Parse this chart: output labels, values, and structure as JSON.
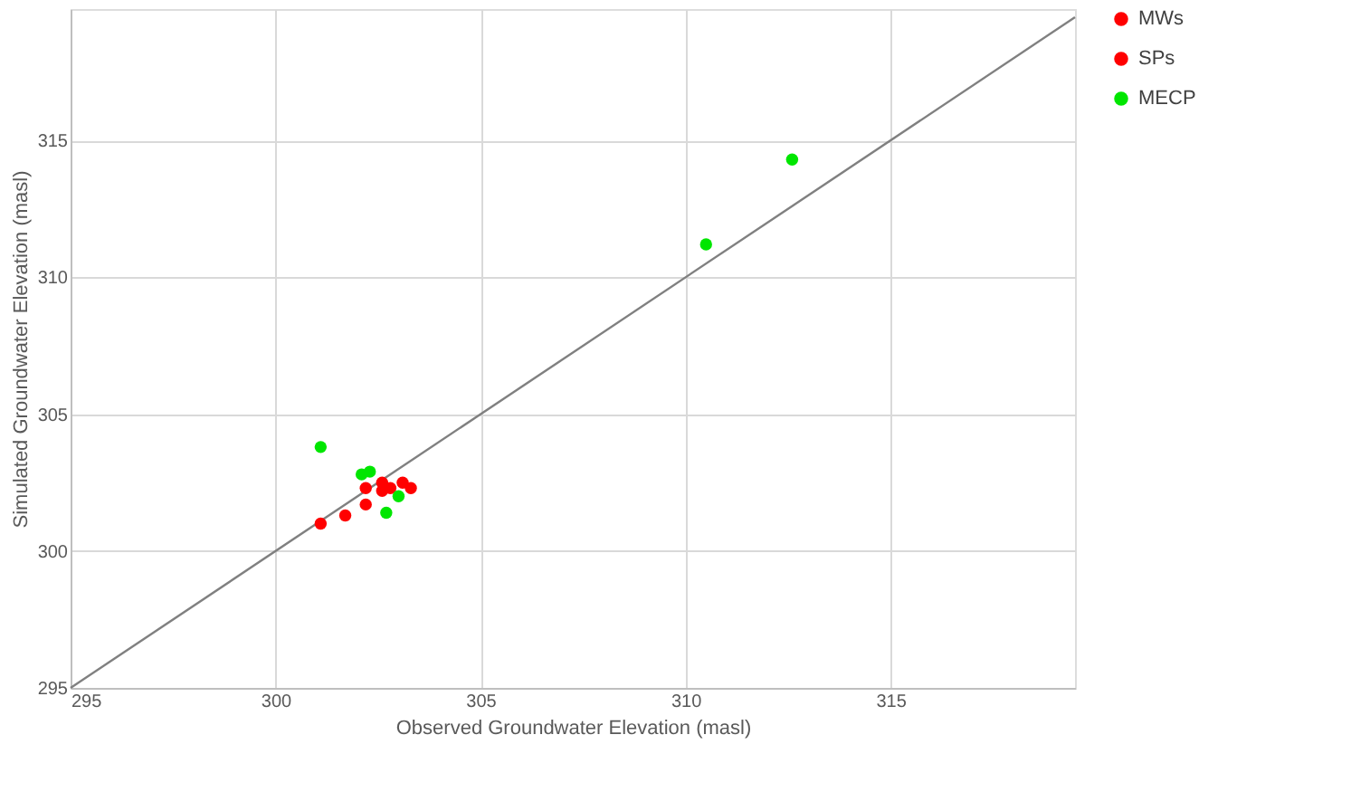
{
  "chart_data": {
    "type": "scatter",
    "xlabel": "Observed Groundwater Elevation (masl)",
    "ylabel": "Simulated Groundwater Elevation (masl)",
    "xlim": [
      295,
      319.5
    ],
    "ylim": [
      295,
      319.8
    ],
    "xticks": [
      295,
      300,
      305,
      310,
      315
    ],
    "yticks": [
      295,
      300,
      305,
      310,
      315
    ],
    "grid": true,
    "legend": "right",
    "marker": "circle",
    "series": [
      {
        "name": "MWs",
        "color": "#ff0000",
        "x": [
          301.1,
          301.7,
          302.2,
          302.2
        ],
        "values": [
          301.0,
          301.3,
          301.7,
          302.3
        ]
      },
      {
        "name": "SPs",
        "color": "#ff0000",
        "x": [
          302.6,
          302.6,
          302.8,
          303.1,
          303.3
        ],
        "values": [
          302.5,
          302.2,
          302.3,
          302.5,
          302.3
        ]
      },
      {
        "name": "MECP",
        "color": "#00e600",
        "x": [
          301.1,
          302.1,
          302.3,
          303.0,
          302.7,
          310.5,
          312.6
        ],
        "values": [
          303.8,
          302.8,
          302.9,
          302.0,
          301.4,
          311.2,
          314.3
        ]
      },
      {
        "type": "line",
        "marker": "none",
        "color": "#808080",
        "x": [
          295,
          319.5
        ],
        "values": [
          295,
          319.5
        ]
      }
    ]
  }
}
